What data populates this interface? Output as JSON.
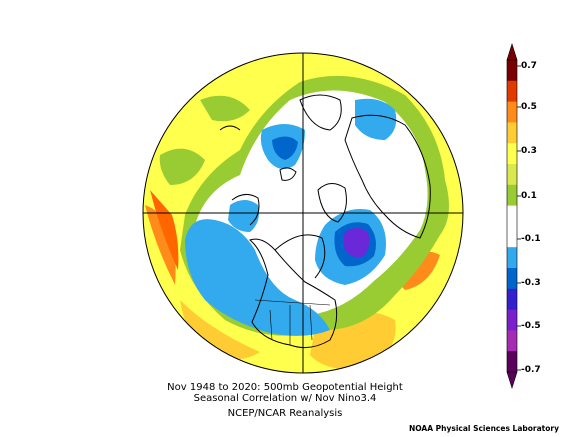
{
  "caption": {
    "line1": "Nov 1948 to 2020: 500mb Geopotential Height",
    "line2": "Seasonal Correlation w/ Nov Nino3.4",
    "line3": "NCEP/NCAR Reanalysis"
  },
  "credit": "NOAA Physical Sciences Laboratory",
  "colorbar": {
    "labels": [
      "0.7",
      "0.5",
      "0.3",
      "0.1",
      "-0.1",
      "-0.3",
      "-0.5",
      "-0.7"
    ],
    "colors": [
      "#7a0000",
      "#e03a00",
      "#ff8c1a",
      "#ffcc33",
      "#ffff4d",
      "#d8e84d",
      "#99cc33",
      "#ffffff",
      "#ffffff",
      "#33aaee",
      "#0066cc",
      "#3322cc",
      "#7a1fcc",
      "#a62bb3",
      "#5a005a"
    ]
  },
  "map": {
    "background_color": "#ffff4d",
    "field_colors": {
      "orange": "#ff8c1a",
      "light_orange": "#ffcc33",
      "yellow": "#ffff4d",
      "green": "#99cc33",
      "white": "#ffffff",
      "light_blue": "#33aaee",
      "blue": "#0066cc",
      "purple": "#6a28d9"
    }
  }
}
